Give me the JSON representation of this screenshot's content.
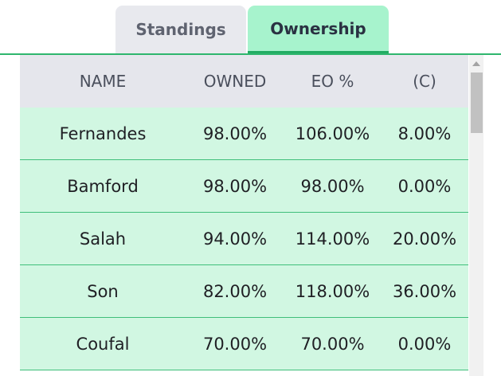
{
  "tabs": [
    {
      "label": "Standings",
      "active": false
    },
    {
      "label": "Ownership",
      "active": true
    }
  ],
  "table": {
    "headers": [
      "NAME",
      "OWNED",
      "EO %",
      "(C)"
    ],
    "rows": [
      [
        "Fernandes",
        "98.00%",
        "106.00%",
        "8.00%"
      ],
      [
        "Bamford",
        "98.00%",
        "98.00%",
        "0.00%"
      ],
      [
        "Salah",
        "94.00%",
        "114.00%",
        "20.00%"
      ],
      [
        "Son",
        "82.00%",
        "118.00%",
        "36.00%"
      ],
      [
        "Coufal",
        "70.00%",
        "70.00%",
        "0.00%"
      ]
    ]
  },
  "colors": {
    "accent": "#2fb66e",
    "active_tab": "#a7f3cd",
    "inactive_tab": "#e8e9ee",
    "row_bg": "#d1f7e2",
    "header_bg": "#e5e6ec"
  }
}
